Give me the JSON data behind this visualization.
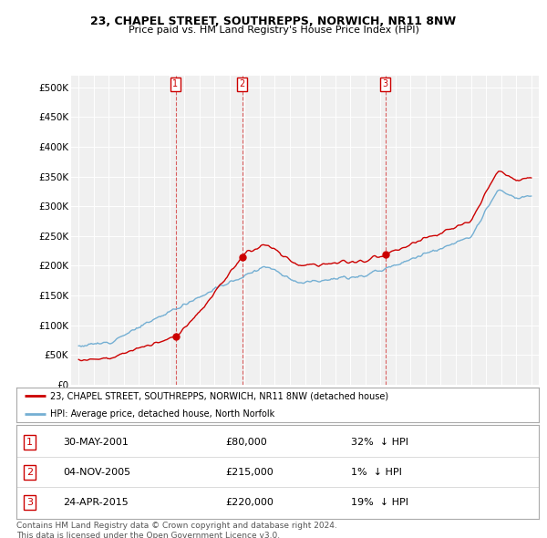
{
  "title": "23, CHAPEL STREET, SOUTHREPPS, NORWICH, NR11 8NW",
  "subtitle": "Price paid vs. HM Land Registry's House Price Index (HPI)",
  "ylabel_ticks": [
    "£0",
    "£50K",
    "£100K",
    "£150K",
    "£200K",
    "£250K",
    "£300K",
    "£350K",
    "£400K",
    "£450K",
    "£500K"
  ],
  "ytick_values": [
    0,
    50000,
    100000,
    150000,
    200000,
    250000,
    300000,
    350000,
    400000,
    450000,
    500000
  ],
  "ylim": [
    0,
    520000
  ],
  "xlim_start": 1994.5,
  "xlim_end": 2025.5,
  "sale_color": "#cc0000",
  "hpi_color": "#74afd3",
  "sale_label": "23, CHAPEL STREET, SOUTHREPPS, NORWICH, NR11 8NW (detached house)",
  "hpi_label": "HPI: Average price, detached house, North Norfolk",
  "transactions": [
    {
      "num": 1,
      "date": "30-MAY-2001",
      "price": 80000,
      "pct": "32%",
      "direction": "↓",
      "x": 2001.42
    },
    {
      "num": 2,
      "date": "04-NOV-2005",
      "price": 215000,
      "pct": "1%",
      "direction": "↓",
      "x": 2005.84
    },
    {
      "num": 3,
      "date": "24-APR-2015",
      "price": 220000,
      "pct": "19%",
      "direction": "↓",
      "x": 2015.32
    }
  ],
  "footnote": "Contains HM Land Registry data © Crown copyright and database right 2024.\nThis data is licensed under the Open Government Licence v3.0.",
  "background_color": "#ffffff",
  "plot_bg_color": "#f0f0f0"
}
